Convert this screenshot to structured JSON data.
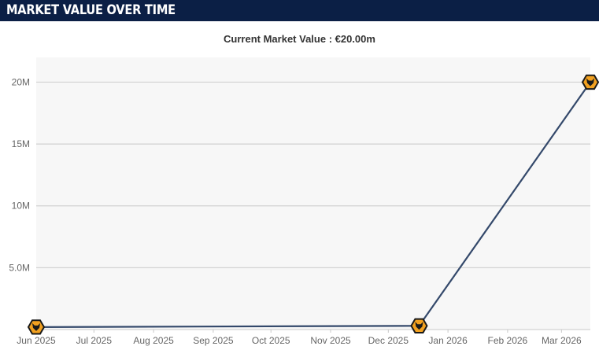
{
  "header": {
    "title": "MARKET VALUE OVER TIME"
  },
  "chart_data": {
    "type": "line",
    "subtitle": "Current Market Value : €20.00m",
    "title": "",
    "xlabel": "",
    "ylabel": "",
    "x_tick_labels": [
      "Jun 2025",
      "Jul 2025",
      "Aug 2025",
      "Sep 2025",
      "Oct 2025",
      "Nov 2025",
      "Dec 2025",
      "Jan 2026",
      "Feb 2026",
      "Mar 2026"
    ],
    "y_tick_labels": [
      "5.0M",
      "10M",
      "15M",
      "20M"
    ],
    "y_ticks": [
      5000000,
      10000000,
      15000000,
      20000000
    ],
    "ylim": [
      0,
      22000000
    ],
    "xlim": [
      "2025-06-01",
      "2026-03-16"
    ],
    "grid": true,
    "series": [
      {
        "points": [
          {
            "date": "2025-06-01",
            "value": 200000
          },
          {
            "date": "2025-12-17",
            "value": 300000
          },
          {
            "date": "2026-03-16",
            "value": 20000000
          }
        ]
      }
    ],
    "colors": {
      "line": "#34496b",
      "marker_fill": "#f2a120",
      "marker_stroke": "#1a1a1a",
      "plot_bg": "#f7f7f7",
      "grid": "#d2d2d2",
      "header_bg": "#0b1f45"
    },
    "marker_icon": "wolf-crest-icon"
  }
}
